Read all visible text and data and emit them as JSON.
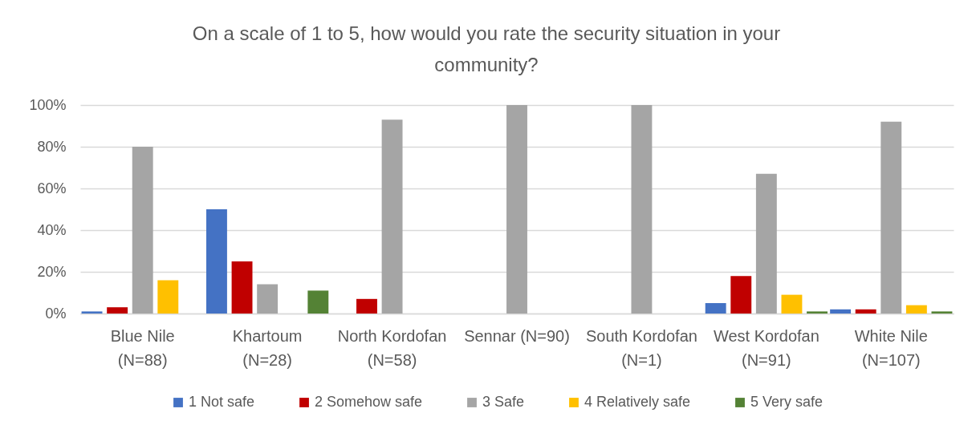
{
  "chart_data": {
    "type": "bar",
    "title": "On a scale of 1 to 5, how would you rate the security situation in your community?",
    "categories": [
      "Blue Nile (N=88)",
      "Khartoum (N=28)",
      "North Kordofan (N=58)",
      "Sennar (N=90)",
      "South Kordofan (N=1)",
      "West Kordofan (N=91)",
      "White Nile (N=107)"
    ],
    "series": [
      {
        "name": "1 Not safe",
        "color": "#4472c4",
        "values": [
          1,
          50,
          0,
          0,
          0,
          5,
          2
        ]
      },
      {
        "name": "2 Somehow safe",
        "color": "#c00000",
        "values": [
          3,
          25,
          7,
          0,
          0,
          18,
          2
        ]
      },
      {
        "name": "3 Safe",
        "color": "#a5a5a5",
        "values": [
          80,
          14,
          93,
          100,
          100,
          67,
          92
        ]
      },
      {
        "name": "4 Relatively safe",
        "color": "#ffc000",
        "values": [
          16,
          0,
          0,
          0,
          0,
          9,
          4
        ]
      },
      {
        "name": "5 Very safe",
        "color": "#548235",
        "values": [
          0,
          11,
          0,
          0,
          0,
          1,
          1
        ]
      }
    ],
    "ylim": [
      0,
      100
    ],
    "yticks": [
      {
        "value": 0,
        "label": "0%"
      },
      {
        "value": 20,
        "label": "20%"
      },
      {
        "value": 40,
        "label": "40%"
      },
      {
        "value": 60,
        "label": "60%"
      },
      {
        "value": 80,
        "label": "80%"
      },
      {
        "value": 100,
        "label": "100%"
      }
    ],
    "grid": "y",
    "legend": "bottom"
  }
}
